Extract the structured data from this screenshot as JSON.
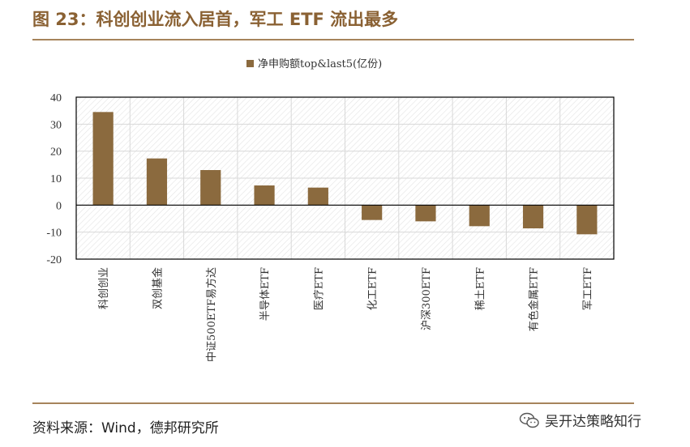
{
  "header": {
    "title": "图 23：科创创业流入居首，军工 ETF 流出最多"
  },
  "footer": {
    "source": "资料来源：Wind，德邦研究所",
    "watermark": "吴开达策略知行"
  },
  "chart_data": {
    "type": "bar",
    "legend": "净申购额top&last5(亿份)",
    "categories": [
      "科创创业",
      "双创基金",
      "中证500ETF易方达",
      "半导体ETF",
      "医疗ETF",
      "化工ETF",
      "沪深300ETF",
      "稀土ETF",
      "有色金属ETF",
      "军工ETF"
    ],
    "values": [
      34.5,
      17.3,
      13.0,
      7.3,
      6.5,
      -5.5,
      -6.0,
      -7.8,
      -8.6,
      -10.8
    ],
    "ylim": [
      -20,
      40
    ],
    "yticks": [
      40,
      30,
      20,
      10,
      0,
      -10,
      -20
    ],
    "bar_color": "#8b6a3e",
    "grid": true,
    "legend_position": "top-center"
  }
}
